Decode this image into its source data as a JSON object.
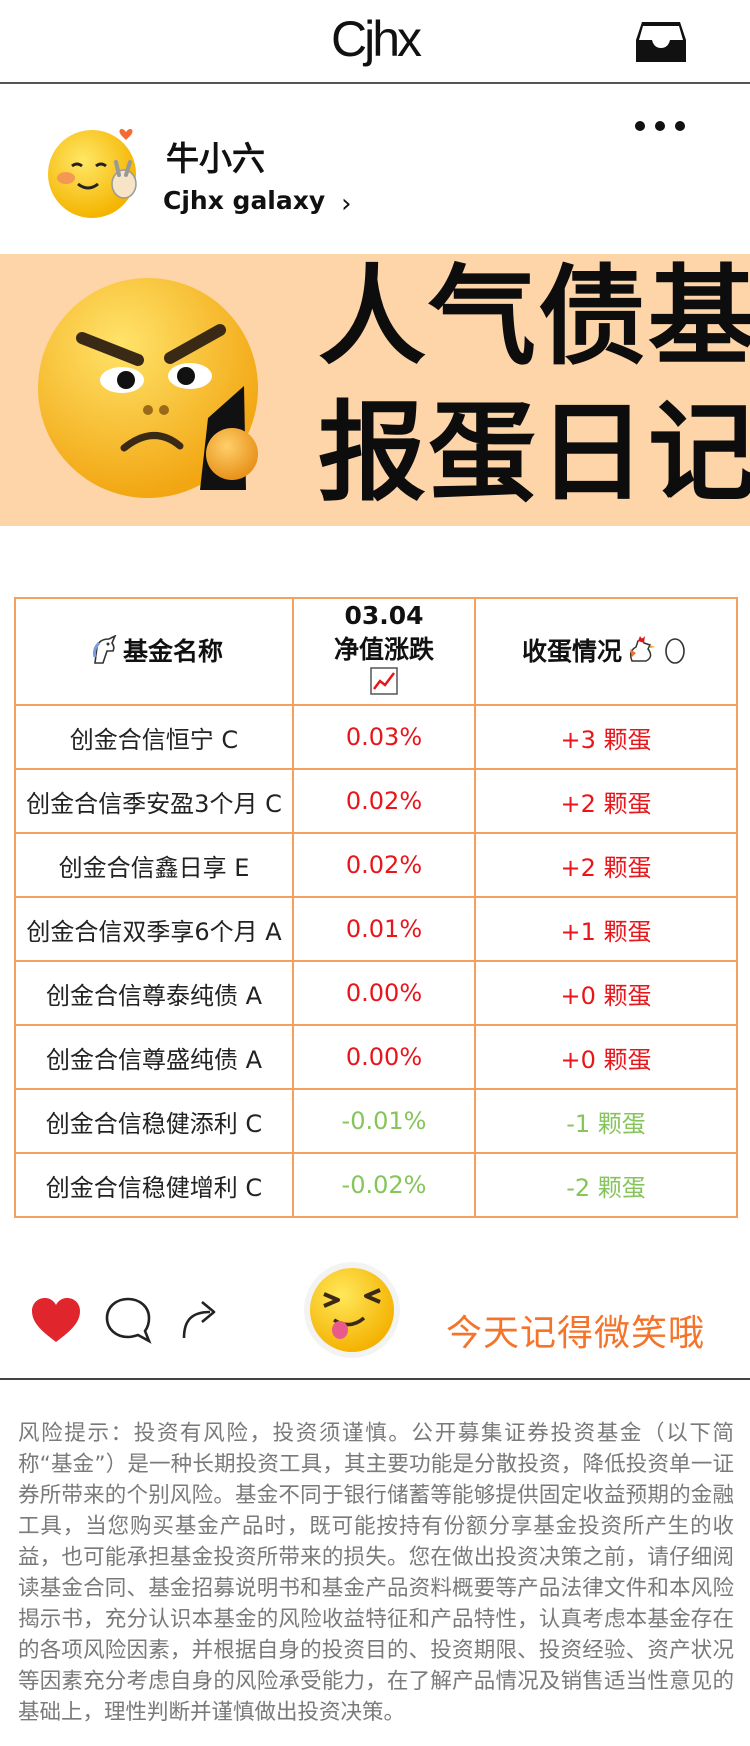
{
  "header": {
    "logo": "Cjhx",
    "inbox_icon": "inbox-icon"
  },
  "profile": {
    "username": "牛小六",
    "brand": "Cjhx galaxy",
    "chevron": "›",
    "more_icon": "more-dots-icon"
  },
  "banner": {
    "line1": "人气债基",
    "line2": "报蛋日记"
  },
  "table": {
    "headers": {
      "name": "基金名称",
      "date": "03.04",
      "change": "净值涨跌",
      "eggs": "收蛋情况"
    },
    "rows": [
      {
        "name": "创金合信恒宁 C",
        "change": "0.03%",
        "eggs": "+3 颗蛋",
        "trend": "up"
      },
      {
        "name": "创金合信季安盈3个月 C",
        "change": "0.02%",
        "eggs": "+2 颗蛋",
        "trend": "up"
      },
      {
        "name": "创金合信鑫日享 E",
        "change": "0.02%",
        "eggs": "+2 颗蛋",
        "trend": "up"
      },
      {
        "name": "创金合信双季享6个月 A",
        "change": "0.01%",
        "eggs": "+1 颗蛋",
        "trend": "up"
      },
      {
        "name": "创金合信尊泰纯债 A",
        "change": "0.00%",
        "eggs": "+0 颗蛋",
        "trend": "flat"
      },
      {
        "name": "创金合信尊盛纯债 A",
        "change": "0.00%",
        "eggs": "+0 颗蛋",
        "trend": "flat"
      },
      {
        "name": "创金合信稳健添利 C",
        "change": "-0.01%",
        "eggs": "-1 颗蛋",
        "trend": "down"
      },
      {
        "name": "创金合信稳健增利 C",
        "change": "-0.02%",
        "eggs": "-2 颗蛋",
        "trend": "down"
      }
    ],
    "colors": {
      "up": "#e8161b",
      "flat": "#e8161b",
      "down": "#86c55b",
      "border": "#f4a160"
    }
  },
  "actions": {
    "like_icon": "heart-icon",
    "comment_icon": "comment-icon",
    "share_icon": "share-icon",
    "message": "今天记得微笑哦"
  },
  "disclaimer": "风险提示：投资有风险，投资须谨慎。公开募集证券投资基金（以下简称“基金”）是一种长期投资工具，其主要功能是分散投资，降低投资单一证券所带来的个别风险。基金不同于银行储蓄等能够提供固定收益预期的金融工具，当您购买基金产品时，既可能按持有份额分享基金投资所产生的收益，也可能承担基金投资所带来的损失。您在做出投资决策之前，请仔细阅读基金合同、基金招募说明书和基金产品资料概要等产品法律文件和本风险揭示书，充分认识本基金的风险收益特征和产品特性，认真考虑本基金存在的各项风险因素，并根据自身的投资目的、投资期限、投资经验、资产状况等因素充分考虑自身的风险承受能力，在了解产品情况及销售适当性意见的基础上，理性判断并谨慎做出投资决策。",
  "brand_colors": {
    "banner_bg": "#fdd5a8",
    "accent": "#f5742b",
    "disclaimer_text": "#7a7a7a"
  }
}
